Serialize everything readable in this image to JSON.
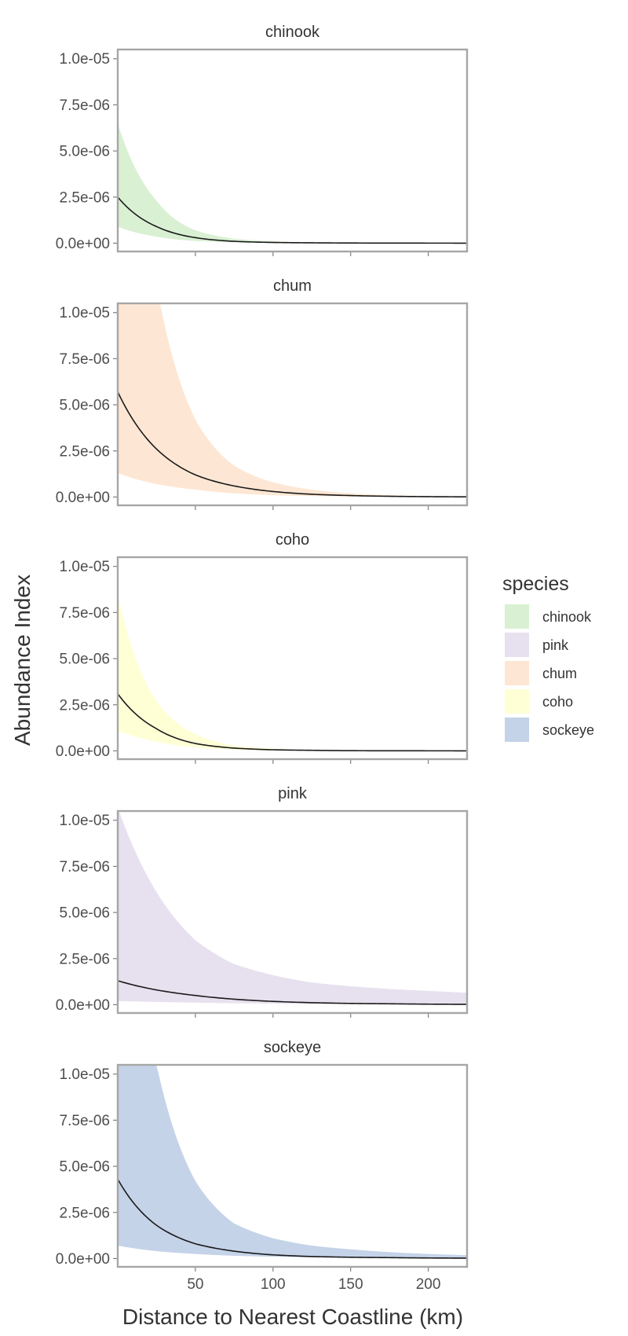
{
  "chart_data": {
    "type": "area",
    "facets": [
      "chinook",
      "chum",
      "coho",
      "pink",
      "sockeye"
    ],
    "xlabel": "Distance to Nearest Coastline (km)",
    "ylabel": "Abundance Index",
    "xlim": [
      0,
      225
    ],
    "ylim": [
      -4.5e-07,
      1.05e-05
    ],
    "xticks": [
      50,
      100,
      150,
      200
    ],
    "yticks": [
      0,
      2.5e-06,
      5e-06,
      7.5e-06,
      1e-05
    ],
    "ytick_labels": [
      "0.0e+00",
      "2.5e-06",
      "5.0e-06",
      "7.5e-06",
      "1.0e-05"
    ],
    "x": [
      0,
      25,
      50,
      75,
      100,
      125,
      150,
      175,
      200,
      225
    ],
    "legend": {
      "title": "species",
      "position": "right",
      "items": [
        {
          "name": "chinook",
          "color": "#d9f0d3"
        },
        {
          "name": "pink",
          "color": "#e7e1ef"
        },
        {
          "name": "chum",
          "color": "#fde7d4"
        },
        {
          "name": "coho",
          "color": "#ffffd6"
        },
        {
          "name": "sockeye",
          "color": "#c4d3e8"
        }
      ]
    },
    "series": [
      {
        "name": "chinook",
        "color": "#d9f0d3",
        "fit": [
          2.5e-06,
          9e-07,
          3e-07,
          1e-07,
          4e-08,
          2e-08,
          1e-08,
          5e-09,
          3e-09,
          2e-09
        ],
        "lower": [
          9e-07,
          3.5e-07,
          1.2e-07,
          5e-08,
          2e-08,
          1e-08,
          5e-09,
          3e-09,
          2e-09,
          1e-09
        ],
        "upper": [
          6.5e-06,
          2.3e-06,
          7e-07,
          2.5e-07,
          1e-07,
          5e-08,
          3e-08,
          2e-08,
          1e-08,
          8e-09
        ]
      },
      {
        "name": "chum",
        "color": "#fde7d4",
        "fit": [
          5.7e-06,
          2.6e-06,
          1.2e-06,
          6e-07,
          3e-07,
          1.5e-07,
          8e-08,
          4e-08,
          2e-08,
          1e-08
        ],
        "lower": [
          1.3e-06,
          7e-07,
          4e-07,
          2e-07,
          1e-07,
          5e-08,
          3e-08,
          2e-08,
          1e-08,
          8e-09
        ],
        "upper": [
          2.5e-05,
          1.15e-05,
          4.2e-06,
          1.7e-06,
          8e-07,
          4e-07,
          2e-07,
          1e-07,
          6e-08,
          4e-08
        ]
      },
      {
        "name": "coho",
        "color": "#ffffd6",
        "fit": [
          3.1e-06,
          1.2e-06,
          4e-07,
          1.5e-07,
          6e-08,
          3e-08,
          1e-08,
          5e-09,
          3e-09,
          2e-09
        ],
        "lower": [
          1.1e-06,
          5e-07,
          1.8e-07,
          7e-08,
          3e-08,
          1e-08,
          5e-09,
          3e-09,
          2e-09,
          1e-09
        ],
        "upper": [
          8.5e-06,
          2.7e-06,
          9e-07,
          3e-07,
          1.2e-07,
          5e-08,
          3e-08,
          2e-08,
          1e-08,
          8e-09
        ]
      },
      {
        "name": "pink",
        "color": "#e7e1ef",
        "fit": [
          1.3e-06,
          8e-07,
          5e-07,
          3e-07,
          1.8e-07,
          1.1e-07,
          7e-08,
          5e-08,
          3e-08,
          2e-08
        ],
        "lower": [
          2e-07,
          1.5e-07,
          1.1e-07,
          8e-08,
          6e-08,
          4e-08,
          3e-08,
          2e-08,
          1.5e-08,
          1e-08
        ],
        "upper": [
          1.07e-05,
          6.1e-06,
          3.5e-06,
          2.2e-06,
          1.6e-06,
          1.2e-06,
          1e-06,
          8.5e-07,
          7.5e-07,
          6.5e-07
        ]
      },
      {
        "name": "sockeye",
        "color": "#c4d3e8",
        "fit": [
          4.3e-06,
          1.8e-06,
          8e-07,
          4e-07,
          2e-07,
          1.1e-07,
          7e-08,
          5e-08,
          3e-08,
          2e-08
        ],
        "lower": [
          7e-07,
          4e-07,
          2.5e-07,
          1.5e-07,
          1e-07,
          7e-08,
          5e-08,
          4e-08,
          3e-08,
          2e-08
        ],
        "upper": [
          1.8e-05,
          1.05e-05,
          4.2e-06,
          1.9e-06,
          1.1e-06,
          7e-07,
          5e-07,
          3.5e-07,
          2.5e-07,
          1.8e-07
        ]
      }
    ]
  }
}
